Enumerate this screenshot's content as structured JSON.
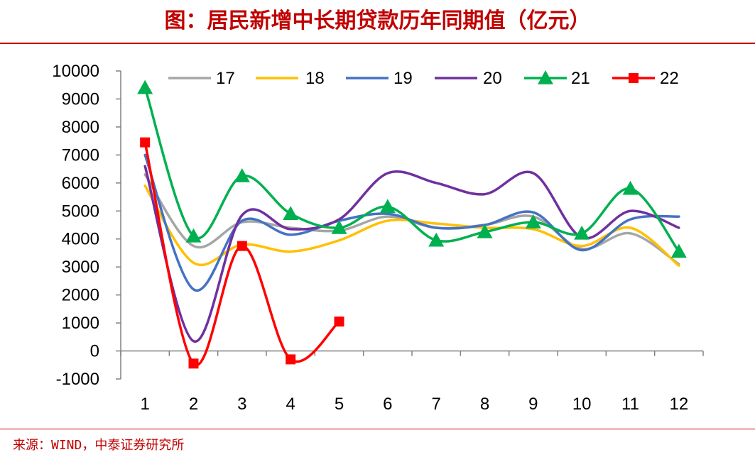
{
  "header": {
    "title": "图：居民新增中长期贷款历年同期值（亿元）"
  },
  "footer": {
    "source": "来源：WIND，中泰证券研究所"
  },
  "chart_data": {
    "type": "line",
    "title": "图：居民新增中长期贷款历年同期值（亿元）",
    "xlabel": "",
    "ylabel": "",
    "x": [
      1,
      2,
      3,
      4,
      5,
      6,
      7,
      8,
      9,
      10,
      11,
      12
    ],
    "ylim": [
      -1000,
      10000
    ],
    "yticks": [
      -1000,
      0,
      1000,
      2000,
      3000,
      4000,
      5000,
      6000,
      7000,
      8000,
      9000,
      10000
    ],
    "grid": false,
    "legend_position": "top",
    "series": [
      {
        "name": "17",
        "color": "#a6a6a6",
        "marker": "none",
        "values": [
          6300,
          3750,
          4600,
          4400,
          4300,
          4800,
          4400,
          4500,
          4800,
          3650,
          4200,
          3100
        ]
      },
      {
        "name": "18",
        "color": "#ffc000",
        "marker": "none",
        "values": [
          5900,
          3150,
          3800,
          3550,
          3950,
          4650,
          4550,
          4400,
          4350,
          3750,
          4400,
          3050
        ]
      },
      {
        "name": "19",
        "color": "#4472c4",
        "marker": "none",
        "values": [
          7000,
          2200,
          4650,
          4150,
          4650,
          4900,
          4400,
          4500,
          4950,
          3600,
          4700,
          4800
        ]
      },
      {
        "name": "20",
        "color": "#7030a0",
        "marker": "none",
        "values": [
          6600,
          350,
          4850,
          4350,
          4700,
          6350,
          6000,
          5600,
          6350,
          4050,
          5000,
          4400
        ]
      },
      {
        "name": "21",
        "color": "#00b050",
        "marker": "triangle",
        "values": [
          9400,
          4100,
          6250,
          4900,
          4400,
          5150,
          3950,
          4250,
          4600,
          4200,
          5800,
          3550
        ]
      },
      {
        "name": "22",
        "color": "#ff0000",
        "marker": "square",
        "values": [
          7450,
          -450,
          3750,
          -300,
          1050,
          null,
          null,
          null,
          null,
          null,
          null,
          null
        ]
      }
    ]
  }
}
